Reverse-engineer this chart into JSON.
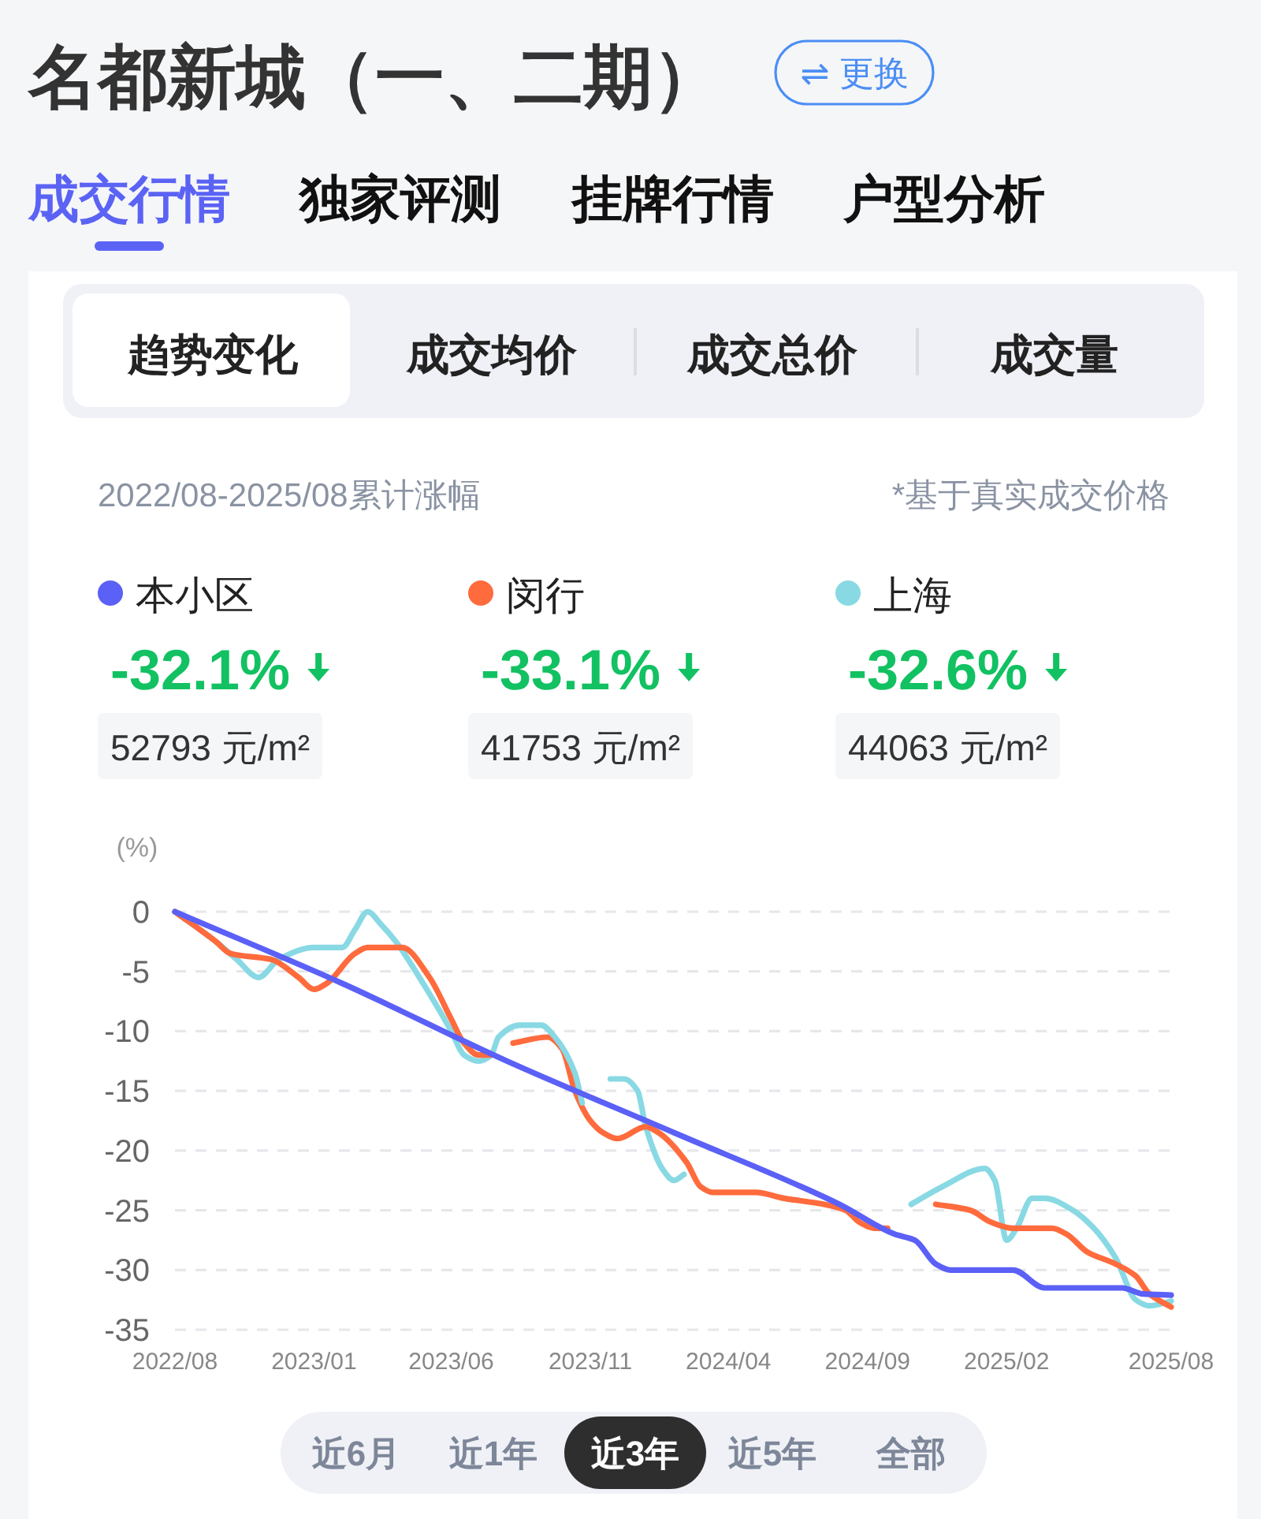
{
  "chart_data": {
    "type": "line",
    "title": "名都新城（一、二期）",
    "subtitle": "2022/08-2025/08累计涨幅",
    "ylabel": "(%)",
    "xlim": [
      "2022-08",
      "2025-08"
    ],
    "xticks": [
      {
        "value": "2022-08",
        "label": "2022/08"
      },
      {
        "value": "2023-01",
        "label": "2023/01"
      },
      {
        "value": "2023-06",
        "label": "2023/06"
      },
      {
        "value": "2023-11",
        "label": "2023/11"
      },
      {
        "value": "2024-04",
        "label": "2024/04"
      },
      {
        "value": "2024-09",
        "label": "2024/09"
      },
      {
        "value": "2025-02",
        "label": "2025/02"
      },
      {
        "value": "2025-08",
        "label": "2025/08"
      }
    ],
    "ylim": [
      -35,
      0
    ],
    "yticks": [
      0,
      -5,
      -10,
      -15,
      -20,
      -25,
      -30,
      -35
    ],
    "grid": "y",
    "legend": "top",
    "series": [
      {
        "name": "本小区",
        "color": "#5b60f6",
        "x": [
          "2022-08-01",
          "2023-02-01",
          "2023-08-01",
          "2024-02-01",
          "2024-08-01",
          "2024-10-01",
          "2024-10-23",
          "2024-11-15",
          "2024-12-01",
          "2025-02-08",
          "2025-03-15",
          "2025-06-08",
          "2025-07-01",
          "2025-08-01"
        ],
        "values": [
          0,
          -6,
          -12.5,
          -18.5,
          -24.5,
          -27,
          -27.5,
          -29.5,
          -30,
          -30,
          -31.5,
          -31.5,
          -32,
          -32.1
        ]
      },
      {
        "name": "闵行",
        "color": "#ff6b3d",
        "x": [
          "2022-08-01",
          "2022-09-15",
          "2022-10-01",
          "2022-11-15",
          "2022-12-15",
          "2023-01-01",
          "2023-01-15",
          "2023-02-15",
          "2023-03-01",
          "2023-04-08",
          "2023-05-08",
          "2023-06-01",
          "2023-06-15",
          "2023-07-01",
          "2023-07-15"
        ],
        "values": [
          0,
          -2.5,
          -3.5,
          -4,
          -5.5,
          -6.5,
          -6,
          -3.5,
          -3,
          -3,
          -5.5,
          -9,
          -11,
          -12,
          -12
        ]
      },
      {
        "name": "上海",
        "color": "#88d9e3",
        "x": [
          "2022-08-01",
          "2022-09-15",
          "2022-10-08",
          "2022-11-01",
          "2022-11-23",
          "2023-01-01",
          "2023-02-01",
          "2023-02-15",
          "2023-03-01",
          "2023-03-15",
          "2023-04-01",
          "2023-05-01",
          "2023-06-01",
          "2023-06-15",
          "2023-07-01",
          "2023-07-15",
          "2023-07-23",
          "2023-08-15",
          "2023-09-08",
          "2023-09-23",
          "2023-10-15",
          "2023-10-23"
        ],
        "values": [
          0,
          -2.5,
          -4,
          -5.5,
          -4,
          -3,
          -3,
          -1.5,
          0,
          -1,
          -2.5,
          -6,
          -10,
          -12,
          -12.5,
          -12,
          -10.5,
          -9.5,
          -9.5,
          -10.5,
          -13.5,
          -16
        ]
      },
      {
        "color": "#ff6b3d",
        "x": [
          "2023-08-08",
          "2023-09-15",
          "2023-10-01",
          "2023-10-15",
          "2023-11-01",
          "2023-11-15",
          "2023-12-01",
          "2024-01-01",
          "2024-01-15",
          "2024-02-15",
          "2024-03-01",
          "2024-03-15",
          "2024-05-01",
          "2024-06-01",
          "2024-07-15",
          "2024-08-08",
          "2024-08-23",
          "2024-09-08",
          "2024-09-23"
        ],
        "values": [
          -11,
          -10.5,
          -11.5,
          -15,
          -17.5,
          -18.5,
          -19,
          -18,
          -18.5,
          -21,
          -23,
          -23.5,
          -23.5,
          -24,
          -24.5,
          -25,
          -26,
          -26.5,
          -26.5
        ]
      },
      {
        "color": "#ff6b3d",
        "x": [
          "2024-11-15",
          "2024-12-23",
          "2025-01-15",
          "2025-02-08",
          "2025-03-23",
          "2025-04-08",
          "2025-05-01",
          "2025-06-01",
          "2025-06-23",
          "2025-07-08",
          "2025-08-01"
        ],
        "values": [
          -24.5,
          -25,
          -26,
          -26.5,
          -26.5,
          -27,
          -28.5,
          -29.5,
          -30.5,
          -32,
          -33.1
        ]
      },
      {
        "color": "#88d9e3",
        "x": [
          "2023-11-23",
          "2023-12-08",
          "2023-12-23",
          "2024-01-01",
          "2024-01-19",
          "2024-02-01",
          "2024-02-12"
        ],
        "values": [
          -14,
          -14,
          -15,
          -18,
          -21.5,
          -22.5,
          -22
        ]
      },
      {
        "color": "#88d9e3",
        "x": [
          "2024-10-19",
          "2024-11-23",
          "2025-01-08",
          "2025-01-19",
          "2025-02-01",
          "2025-02-12",
          "2025-03-01",
          "2025-03-15",
          "2025-04-15",
          "2025-05-08",
          "2025-06-01",
          "2025-06-23",
          "2025-07-08",
          "2025-08-01"
        ],
        "values": [
          -24.5,
          -23,
          -21.5,
          -22.5,
          -27.5,
          -26.5,
          -24,
          -24,
          -25,
          -26.5,
          -29,
          -32.5,
          -33,
          -32.6
        ]
      }
    ],
    "annotations": [
      "⇌ 更换",
      "成交行情",
      "独家评测",
      "挂牌行情",
      "户型分析",
      "趋势变化",
      "成交均价",
      "成交总价",
      "成交量",
      "*基于真实成交价格",
      "-32.1%",
      "52793 元/m²",
      "-33.1%",
      "41753 元/m²",
      "-32.6%",
      "44063 元/m²",
      "近6月",
      "近1年",
      "近3年",
      "近5年",
      "全部"
    ]
  }
}
